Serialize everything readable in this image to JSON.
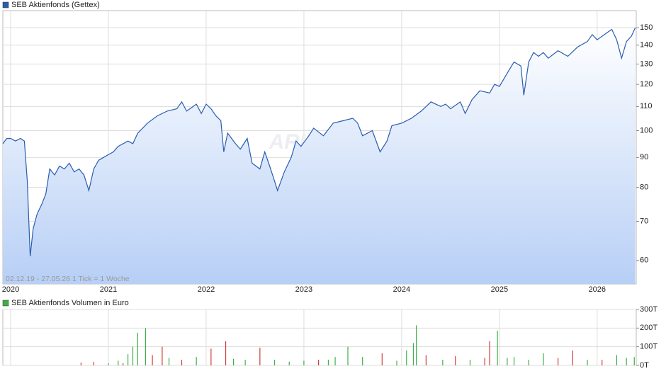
{
  "chart_data": [
    {
      "type": "line",
      "legend": "SEB Aktienfonds (Gettex)",
      "footnote": "02.12.19 - 27.05.26   1 Tick = 1 Woche",
      "watermark": "ARIVA.DE",
      "log_scale": true,
      "grid": true,
      "xlim": [
        2019.92,
        2026.4
      ],
      "xticks": [
        2020,
        2021,
        2022,
        2023,
        2024,
        2025,
        2026
      ],
      "ylim": [
        54.7,
        160.4
      ],
      "yticks": [
        60,
        70,
        80,
        90,
        100,
        110,
        120,
        130,
        140,
        150
      ],
      "series": [
        {
          "name": "SEB Aktienfonds (Gettex)",
          "color": "#2a5db0",
          "x": [
            2019.92,
            2019.96,
            2020.0,
            2020.05,
            2020.1,
            2020.14,
            2020.17,
            2020.2,
            2020.23,
            2020.27,
            2020.32,
            2020.36,
            2020.4,
            2020.45,
            2020.5,
            2020.55,
            2020.6,
            2020.65,
            2020.7,
            2020.75,
            2020.8,
            2020.85,
            2020.9,
            2020.95,
            2021.0,
            2021.05,
            2021.1,
            2021.2,
            2021.25,
            2021.3,
            2021.4,
            2021.5,
            2021.6,
            2021.7,
            2021.75,
            2021.8,
            2021.9,
            2021.95,
            2022.0,
            2022.05,
            2022.1,
            2022.15,
            2022.18,
            2022.22,
            2022.3,
            2022.35,
            2022.42,
            2022.47,
            2022.55,
            2022.6,
            2022.65,
            2022.7,
            2022.73,
            2022.8,
            2022.87,
            2022.92,
            2022.97,
            2023.05,
            2023.1,
            2023.2,
            2023.3,
            2023.4,
            2023.5,
            2023.55,
            2023.6,
            2023.7,
            2023.78,
            2023.85,
            2023.9,
            2024.0,
            2024.1,
            2024.2,
            2024.3,
            2024.4,
            2024.45,
            2024.5,
            2024.6,
            2024.65,
            2024.72,
            2024.8,
            2024.9,
            2024.95,
            2025.0,
            2025.1,
            2025.15,
            2025.22,
            2025.25,
            2025.3,
            2025.35,
            2025.4,
            2025.45,
            2025.5,
            2025.6,
            2025.7,
            2025.8,
            2025.9,
            2025.95,
            2026.0,
            2026.1,
            2026.15,
            2026.2,
            2026.25,
            2026.3,
            2026.35,
            2026.39
          ],
          "values": [
            95,
            97,
            97,
            96,
            97,
            96,
            82,
            61,
            68,
            72,
            75,
            78,
            86,
            84,
            87,
            86,
            88,
            85,
            86,
            84,
            79,
            86,
            89,
            90,
            91,
            92,
            94,
            96,
            95,
            99,
            103,
            106,
            108,
            109,
            112,
            108,
            111,
            107,
            111,
            109,
            106,
            104,
            92,
            99,
            95,
            93,
            97,
            88,
            86,
            92,
            87,
            82,
            79,
            85,
            90,
            96,
            94,
            98,
            101,
            98,
            103,
            104,
            105,
            103,
            98,
            100,
            92,
            96,
            102,
            103,
            105,
            108,
            112,
            110,
            111,
            109,
            112,
            107,
            113,
            117,
            116,
            120,
            119,
            127,
            131,
            129,
            115,
            131,
            136,
            134,
            136,
            133,
            137,
            134,
            139,
            142,
            146,
            143,
            147,
            149,
            143,
            133,
            142,
            145,
            150
          ]
        }
      ]
    },
    {
      "type": "bar",
      "legend": "SEB Aktienfonds Volumen in Euro",
      "grid": true,
      "xlim": [
        2019.92,
        2026.4
      ],
      "xticks": [
        2020,
        2021,
        2022,
        2023,
        2024,
        2025,
        2026
      ],
      "ylim": [
        0,
        300000
      ],
      "yticks": [
        {
          "value": 0,
          "label": "0T"
        },
        {
          "value": 100000,
          "label": "100T"
        },
        {
          "value": 200000,
          "label": "200T"
        },
        {
          "value": 300000,
          "label": "300T"
        }
      ],
      "series": [
        {
          "name": "SEB Aktienfonds Volumen in Euro",
          "color": "#3cb043",
          "x": [
            2020.72,
            2020.85,
            2021.0,
            2021.1,
            2021.15,
            2021.2,
            2021.25,
            2021.3,
            2021.38,
            2021.45,
            2021.55,
            2021.62,
            2021.75,
            2021.9,
            2022.05,
            2022.2,
            2022.28,
            2022.4,
            2022.55,
            2022.7,
            2022.85,
            2023.0,
            2023.15,
            2023.25,
            2023.32,
            2023.45,
            2023.6,
            2023.8,
            2023.95,
            2024.05,
            2024.12,
            2024.15,
            2024.25,
            2024.42,
            2024.55,
            2024.7,
            2024.85,
            2024.9,
            2024.98,
            2025.08,
            2025.15,
            2025.3,
            2025.45,
            2025.6,
            2025.75,
            2025.9,
            2026.05,
            2026.2,
            2026.3,
            2026.38
          ],
          "values": [
            15000,
            18000,
            12000,
            25000,
            12000,
            60000,
            100000,
            175000,
            200000,
            55000,
            100000,
            40000,
            30000,
            45000,
            90000,
            130000,
            35000,
            30000,
            95000,
            30000,
            20000,
            25000,
            30000,
            30000,
            45000,
            100000,
            45000,
            65000,
            25000,
            80000,
            120000,
            215000,
            55000,
            30000,
            50000,
            30000,
            40000,
            130000,
            185000,
            40000,
            45000,
            30000,
            65000,
            40000,
            80000,
            30000,
            30000,
            55000,
            40000,
            45000
          ],
          "colors": [
            "#d23c3c",
            "#d23c3c",
            "#3cb043",
            "#3cb043",
            "#d23c3c",
            "#3cb043",
            "#3cb043",
            "#3cb043",
            "#3cb043",
            "#d23c3c",
            "#d23c3c",
            "#3cb043",
            "#d23c3c",
            "#3cb043",
            "#d23c3c",
            "#d23c3c",
            "#3cb043",
            "#3cb043",
            "#d23c3c",
            "#3cb043",
            "#3cb043",
            "#3cb043",
            "#d23c3c",
            "#3cb043",
            "#3cb043",
            "#3cb043",
            "#3cb043",
            "#d23c3c",
            "#3cb043",
            "#3cb043",
            "#3cb043",
            "#3cb043",
            "#d23c3c",
            "#3cb043",
            "#d23c3c",
            "#3cb043",
            "#d23c3c",
            "#d23c3c",
            "#3cb043",
            "#3cb043",
            "#3cb043",
            "#3cb043",
            "#3cb043",
            "#d23c3c",
            "#d23c3c",
            "#3cb043",
            "#d23c3c",
            "#3cb043",
            "#3cb043",
            "#3cb043"
          ]
        }
      ]
    }
  ]
}
